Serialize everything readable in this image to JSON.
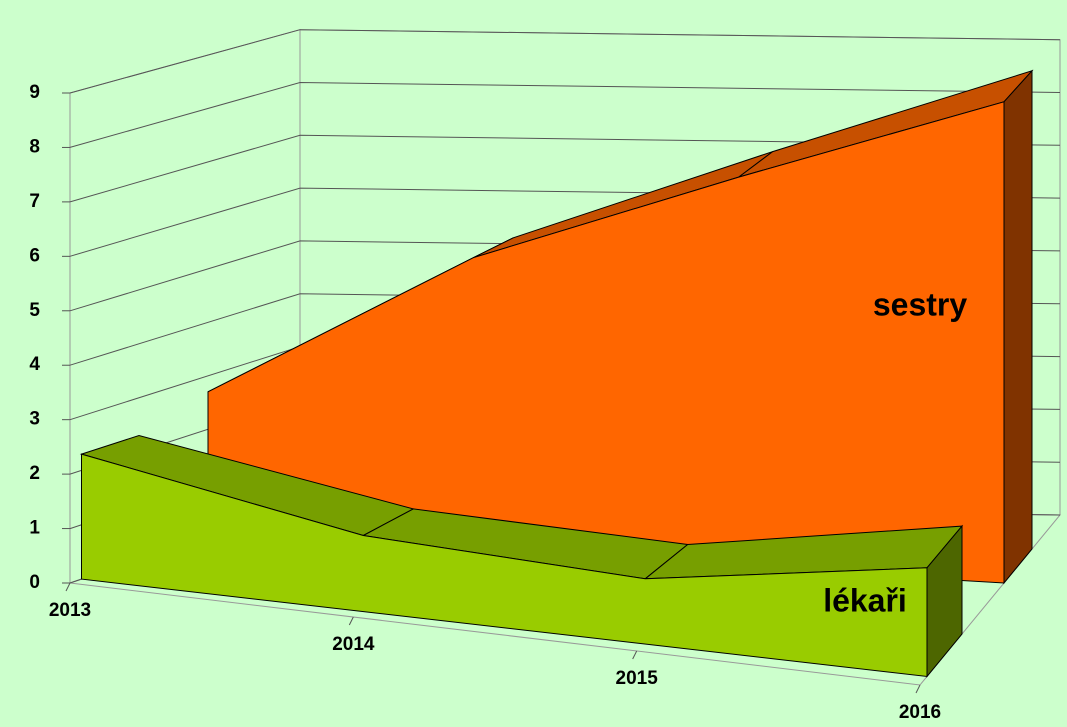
{
  "chart_data": {
    "type": "area3d",
    "categories": [
      "2013",
      "2014",
      "2015",
      "2016"
    ],
    "series": [
      {
        "name": "lékaři",
        "color": "#99cc00",
        "values": [
          2.3,
          1.4,
          1.2,
          2
        ]
      },
      {
        "name": "sestry",
        "color": "#ff6600",
        "values": [
          2.7,
          5.5,
          7.3,
          9
        ]
      }
    ],
    "ylim": [
      0,
      9
    ],
    "yticks": [
      0,
      1,
      2,
      3,
      4,
      5,
      6,
      7,
      8,
      9
    ],
    "grid": true
  }
}
